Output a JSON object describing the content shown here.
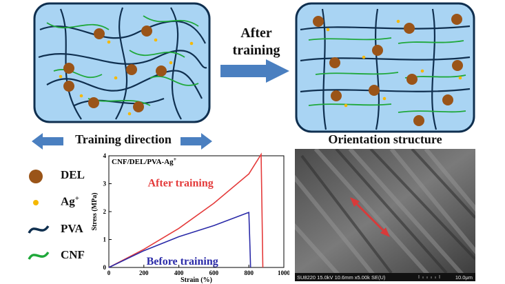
{
  "arrow_label": [
    "After",
    "training"
  ],
  "training_direction": "Training direction",
  "orientation_structure": "Orientation structure",
  "legend": [
    {
      "label": "DEL",
      "icon": "del-particle-icon",
      "color": "#9a5418"
    },
    {
      "label": "Ag",
      "sup": "+",
      "icon": "ag-dot-icon",
      "color": "#f5b800"
    },
    {
      "label": "PVA",
      "icon": "pva-chain-icon",
      "color": "#0f2f4f"
    },
    {
      "label": "CNF",
      "icon": "cnf-fiber-icon",
      "color": "#1fa83a"
    }
  ],
  "colors": {
    "box_fill": "#a9d4f3",
    "arrow_blue": "#4a7fc0",
    "red": "#e43a3a",
    "blue": "#2a2aa8"
  },
  "chart_data": {
    "type": "line",
    "title": "CNF/DEL/PVA-Ag",
    "title_sup": "+",
    "xlabel": "Strain (%)",
    "ylabel": "Stress (MPa)",
    "xlim": [
      0,
      1000
    ],
    "ylim": [
      0,
      4
    ],
    "xticks": [
      0,
      200,
      400,
      600,
      800,
      1000
    ],
    "yticks": [
      0,
      1,
      2,
      3,
      4
    ],
    "series": [
      {
        "name": "After training",
        "color": "#e43a3a",
        "x": [
          0,
          200,
          400,
          600,
          800,
          870,
          875,
          880
        ],
        "y": [
          0,
          0.65,
          1.4,
          2.3,
          3.35,
          4.05,
          2.0,
          0
        ]
      },
      {
        "name": "Before training",
        "color": "#2a2aa8",
        "x": [
          0,
          200,
          400,
          600,
          790,
          800,
          805,
          810
        ],
        "y": [
          0,
          0.6,
          1.1,
          1.5,
          1.95,
          1.97,
          1.0,
          0
        ]
      }
    ]
  },
  "sem": {
    "caption": "SU8220 15.0kV 10.6mm x5.00k SE(U)",
    "scale": "10.0μm"
  }
}
